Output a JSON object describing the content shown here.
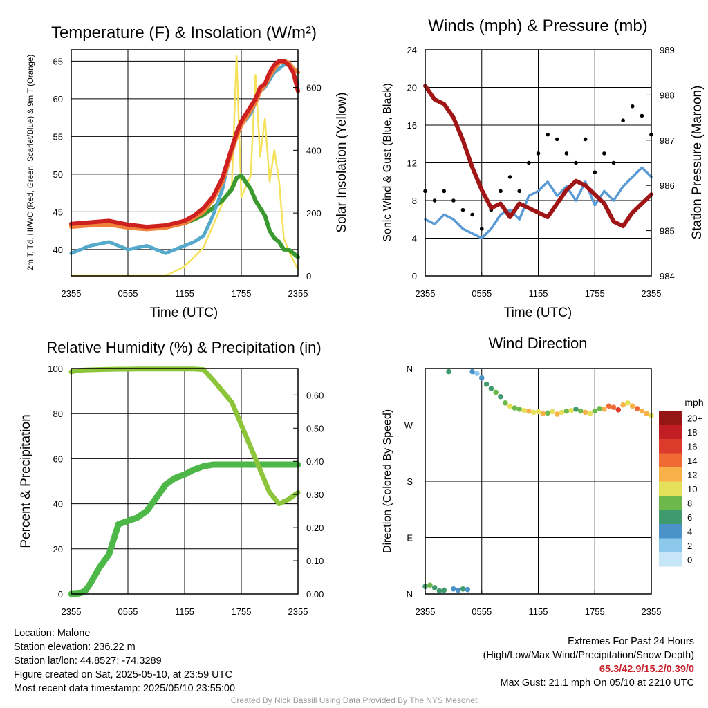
{
  "colors": {
    "t2m": "#cf2020",
    "td": "#3a9a30",
    "hi": "#55aacc",
    "t9m": "#f0813a",
    "insolation": "#f5e25a",
    "wind": "#5b9bd5",
    "gust": "#000000",
    "pressure": "#a01515",
    "rh": "#8cc43a",
    "precip": "#4db848"
  },
  "xticks": [
    "2355",
    "0555",
    "1155",
    "1755",
    "2355"
  ],
  "chart_data": [
    {
      "type": "line",
      "title": "Temperature (F) & Insolation (W/m²)",
      "xlabel": "Time (UTC)",
      "ylabel": "2m T, Td, HI/WC (Red, Green, Scarlet/Blue) & 9m T (Orange)",
      "y2label": "Solar Insolation (Yellow)",
      "ylim": [
        36.5,
        66.5
      ],
      "y2lim": [
        0,
        720
      ],
      "yticks": [
        "40",
        "45",
        "50",
        "55",
        "60",
        "65"
      ],
      "y2ticks": [
        "0",
        "200",
        "400",
        "600"
      ],
      "x_hours": [
        0,
        2,
        4,
        6,
        8,
        10,
        12,
        13,
        14,
        15,
        16,
        17,
        17.5,
        18,
        19,
        19.5,
        20,
        20.5,
        21,
        21.5,
        22,
        22.5,
        23,
        23.5,
        24
      ],
      "series": [
        {
          "name": "2m T",
          "axis": "left",
          "values": [
            43.4,
            43.6,
            43.8,
            43.3,
            43.0,
            43.2,
            43.8,
            44.5,
            45.5,
            47.0,
            49.5,
            53.5,
            55.5,
            57.0,
            59.0,
            60.0,
            61.5,
            62.0,
            63.5,
            64.5,
            65.0,
            65.0,
            64.5,
            63.5,
            61.0
          ]
        },
        {
          "name": "9m T",
          "axis": "left",
          "values": [
            43.0,
            43.2,
            43.3,
            42.9,
            42.7,
            42.9,
            43.5,
            44.2,
            45.0,
            46.6,
            49.0,
            53.0,
            55.0,
            56.5,
            58.5,
            59.5,
            61.0,
            61.8,
            63.0,
            64.0,
            64.8,
            65.0,
            64.8,
            64.0,
            63.5
          ]
        },
        {
          "name": "Td",
          "axis": "left",
          "values": [
            43.2,
            43.5,
            43.6,
            43.0,
            42.8,
            43.0,
            43.5,
            44.0,
            44.6,
            45.5,
            46.5,
            48.0,
            49.5,
            49.8,
            48.0,
            46.5,
            45.5,
            44.5,
            42.5,
            41.5,
            41.0,
            40.0,
            40.0,
            39.5,
            39.0
          ]
        },
        {
          "name": "HI/WC",
          "axis": "left",
          "values": [
            39.5,
            40.5,
            41.0,
            40.0,
            40.5,
            39.5,
            40.5,
            41.0,
            41.8,
            44.5,
            48.0,
            53.5,
            55.5,
            56.5,
            58.0,
            59.5,
            61.0,
            61.5,
            62.5,
            63.5,
            64.0,
            64.5,
            64.5,
            63.5,
            62.0
          ]
        },
        {
          "name": "Solar Insolation",
          "axis": "right",
          "values": [
            0,
            0,
            0,
            0,
            0,
            0,
            30,
            60,
            90,
            160,
            230,
            290,
            700,
            250,
            320,
            640,
            380,
            500,
            300,
            400,
            300,
            120,
            80,
            50,
            20
          ]
        }
      ]
    },
    {
      "type": "line",
      "title": "Winds (mph) & Pressure (mb)",
      "xlabel": "Time (UTC)",
      "ylabel": "Sonic Wind & Gust (Blue, Black)",
      "y2label": "Station Pressure (Maroon)",
      "ylim": [
        0,
        24
      ],
      "y2lim": [
        984,
        989
      ],
      "yticks": [
        "0",
        "4",
        "8",
        "12",
        "16",
        "20",
        "24"
      ],
      "y2ticks": [
        "984",
        "985",
        "986",
        "987",
        "988",
        "989"
      ],
      "x_hours": [
        0,
        1,
        2,
        3,
        4,
        5,
        6,
        7,
        8,
        9,
        10,
        11,
        12,
        13,
        14,
        15,
        16,
        17,
        18,
        19,
        20,
        21,
        22,
        23,
        24
      ],
      "series": [
        {
          "name": "Sonic Wind",
          "axis": "left",
          "values": [
            6.0,
            5.5,
            6.5,
            6.0,
            5.0,
            4.5,
            4.0,
            5.0,
            6.5,
            7.0,
            6.0,
            8.5,
            9.0,
            10.0,
            8.5,
            9.5,
            8.0,
            10.0,
            7.5,
            9.0,
            8.0,
            9.5,
            10.5,
            11.5,
            10.5
          ]
        },
        {
          "name": "Gust",
          "axis": "left",
          "values": [
            9.0,
            8.0,
            9.0,
            8.0,
            7.0,
            6.5,
            5.0,
            7.0,
            9.0,
            10.5,
            9.0,
            12.0,
            13.0,
            15.0,
            14.5,
            13.0,
            12.0,
            14.5,
            11.0,
            13.0,
            12.0,
            16.5,
            18.0,
            17.0,
            15.0
          ]
        },
        {
          "name": "Station Pressure",
          "axis": "right",
          "values": [
            988.2,
            987.9,
            987.8,
            987.5,
            987.0,
            986.4,
            985.9,
            985.5,
            985.6,
            985.3,
            985.6,
            985.5,
            985.4,
            985.3,
            985.6,
            985.9,
            986.1,
            986.0,
            985.8,
            985.6,
            985.2,
            985.1,
            985.4,
            985.6,
            985.8
          ]
        }
      ]
    },
    {
      "type": "line",
      "title": "Relative Humidity (%) & Precipitation (in)",
      "ylabel": "Percent & Precipitation",
      "ylim": [
        0,
        100
      ],
      "y2lim": [
        0,
        0.68
      ],
      "yticks": [
        "0",
        "20",
        "40",
        "60",
        "80",
        "100"
      ],
      "y2ticks": [
        "0.00",
        "0.10",
        "0.20",
        "0.30",
        "0.40",
        "0.50",
        "0.60"
      ],
      "x_hours": [
        0,
        0.5,
        1,
        1.5,
        2,
        3,
        4,
        5,
        6,
        7,
        8,
        9,
        10,
        11,
        12,
        13,
        14,
        15,
        16,
        17,
        18,
        19,
        20,
        21,
        22,
        23,
        24
      ],
      "series": [
        {
          "name": "Relative Humidity",
          "axis": "left",
          "values": [
            98.5,
            99.0,
            99.2,
            99.3,
            99.4,
            99.5,
            99.6,
            99.7,
            99.7,
            99.8,
            99.8,
            99.8,
            99.8,
            99.8,
            99.8,
            99.8,
            99.5,
            95.0,
            90.0,
            85.0,
            75.0,
            65.0,
            55.0,
            45.0,
            40.0,
            42.0,
            45.0
          ]
        },
        {
          "name": "Precipitation",
          "axis": "right",
          "values": [
            0.0,
            0.0,
            0.003,
            0.01,
            0.03,
            0.08,
            0.12,
            0.21,
            0.22,
            0.23,
            0.25,
            0.29,
            0.33,
            0.35,
            0.36,
            0.375,
            0.385,
            0.39,
            0.39,
            0.39,
            0.39,
            0.39,
            0.39,
            0.39,
            0.39,
            0.39,
            0.39
          ]
        }
      ]
    },
    {
      "type": "scatter",
      "title": "Wind Direction",
      "ylabel": "Direction (Colored By Speed)",
      "ylim": [
        0,
        360
      ],
      "yticks": [
        "N",
        "E",
        "S",
        "W",
        "N"
      ],
      "colorbar_unit": "mph",
      "colorbar_labels": [
        "0",
        "2",
        "4",
        "6",
        "8",
        "10",
        "12",
        "14",
        "16",
        "18",
        "20+"
      ],
      "colorbar_colors": [
        "#c6e6f8",
        "#8cc8ec",
        "#4a92c8",
        "#3f9a6e",
        "#6cb84a",
        "#e4e05a",
        "#f8b048",
        "#f06a34",
        "#dc3a2a",
        "#c01e22",
        "#961616"
      ],
      "points_hours": [
        0,
        0.5,
        1,
        1.5,
        2,
        2.5,
        3,
        3.5,
        4,
        4.5,
        5,
        5.5,
        6,
        6.5,
        7,
        7.5,
        8,
        8.5,
        9,
        9.5,
        10,
        10.5,
        11,
        11.5,
        12,
        12.5,
        13,
        13.5,
        14,
        14.5,
        15,
        15.5,
        16,
        16.5,
        17,
        17.5,
        18,
        18.5,
        19,
        19.5,
        20,
        20.5,
        21,
        21.5,
        22,
        22.5,
        23,
        23.5,
        24
      ],
      "directions": [
        12,
        14,
        10,
        5,
        6,
        355,
        8,
        6,
        8,
        7,
        355,
        352,
        345,
        335,
        328,
        322,
        315,
        305,
        300,
        297,
        295,
        293,
        292,
        290,
        291,
        288,
        289,
        291,
        287,
        290,
        292,
        293,
        295,
        292,
        290,
        288,
        292,
        296,
        295,
        300,
        298,
        294,
        302,
        305,
        300,
        296,
        292,
        288,
        285
      ],
      "speeds": [
        6,
        7,
        6,
        5,
        6,
        5,
        4,
        4,
        5,
        4,
        3,
        2,
        4,
        5,
        6,
        7,
        6,
        8,
        9,
        8,
        7,
        10,
        11,
        9,
        10,
        12,
        8,
        10,
        11,
        9,
        8,
        10,
        6,
        8,
        11,
        9,
        7,
        8,
        12,
        13,
        14,
        15,
        12,
        10,
        11,
        13,
        12,
        11,
        10
      ]
    }
  ],
  "info": {
    "location": "Location: Malone",
    "elevation": "Station elevation: 236.22 m",
    "latlon": "Station lat/lon: 44.8527; -74.3289",
    "created": "Figure created on Sat, 2025-05-10, at 23:59 UTC",
    "recent": "Most recent data timestamp: 2025/05/10 23:55:00",
    "extremes_title": "Extremes For Past 24 Hours",
    "extremes_subtitle": "(High/Low/Max Wind/Precipitation/Snow Depth)",
    "extremes_values": "65.3/42.9/15.2/0.39/0",
    "max_gust": "Max Gust: 21.1 mph On 05/10 at 2210 UTC"
  },
  "credit": "Created By Nick Bassill Using Data Provided By The NYS Mesonet"
}
